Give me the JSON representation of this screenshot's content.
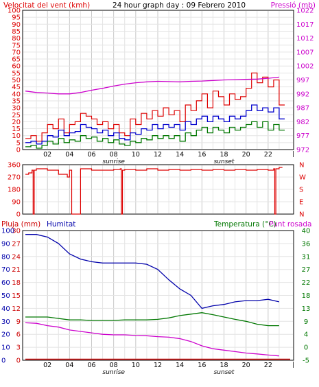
{
  "header": {
    "left_title": "Velocitat del vent (kmh)",
    "center_title": "24 hour graph day : 09 Febrero 2010",
    "right_title": "Pressió (mb)"
  },
  "colors": {
    "wind": "#dd0000",
    "wind_avg": "#0000cc",
    "wind_min": "#007700",
    "pressure": "#cc00cc",
    "direction": "#dd0000",
    "rain": "#cc0000",
    "humidity": "#0000aa",
    "temperature": "#007700",
    "dewpoint": "#cc00cc",
    "axis_left": "#dd0000",
    "axis_right": "#cc00cc",
    "grid_vertical": "#c8c8c8",
    "grid_horizontal": "#e4e4e4"
  },
  "chart_data": [
    {
      "id": "wind_pressure",
      "type": "line",
      "x_ticks": [
        "02",
        "04",
        "06",
        "08",
        "10",
        "12",
        "14",
        "16",
        "18",
        "20",
        "22"
      ],
      "x_markers": {
        "sunrise": "sunrise",
        "sunset": "sunset"
      },
      "left_axis": {
        "label": "Velocitat del vent (kmh)",
        "ticks": [
          "0",
          "5",
          "10",
          "15",
          "20",
          "25",
          "30",
          "35",
          "40",
          "45",
          "50",
          "55",
          "60",
          "65",
          "70",
          "75",
          "80",
          "85",
          "90",
          "95",
          "100"
        ],
        "ylim": [
          0,
          100
        ]
      },
      "right_axis": {
        "label": "Pressió (mb)",
        "ticks": [
          "972",
          "977",
          "982",
          "987",
          "992",
          "997",
          "1002",
          "1007",
          "1012",
          "1017",
          "1022"
        ],
        "ylim": [
          972,
          1022
        ]
      },
      "series": [
        {
          "key": "wind",
          "axis": "left",
          "x": [
            0,
            0.5,
            1,
            1.5,
            2,
            2.5,
            3,
            3.5,
            4,
            4.5,
            5,
            5.5,
            6,
            6.5,
            7,
            7.5,
            8,
            8.5,
            9,
            9.5,
            10,
            10.5,
            11,
            11.5,
            12,
            12.5,
            13,
            13.5,
            14,
            14.5,
            15,
            15.5,
            16,
            16.5,
            17,
            17.5,
            18,
            18.5,
            19,
            19.5,
            20,
            20.5,
            21,
            21.5,
            22,
            22.5,
            23
          ],
          "values": [
            8,
            10,
            6,
            12,
            18,
            15,
            22,
            12,
            18,
            20,
            26,
            24,
            22,
            18,
            20,
            15,
            18,
            12,
            10,
            22,
            18,
            26,
            22,
            28,
            24,
            30,
            25,
            28,
            20,
            32,
            28,
            35,
            40,
            30,
            42,
            38,
            32,
            40,
            36,
            38,
            44,
            55,
            48,
            52,
            45,
            50,
            32
          ]
        },
        {
          "key": "wind_avg",
          "axis": "left",
          "x": [
            0,
            0.5,
            1,
            1.5,
            2,
            2.5,
            3,
            3.5,
            4,
            4.5,
            5,
            5.5,
            6,
            6.5,
            7,
            7.5,
            8,
            8.5,
            9,
            9.5,
            10,
            10.5,
            11,
            11.5,
            12,
            12.5,
            13,
            13.5,
            14,
            14.5,
            15,
            15.5,
            16,
            16.5,
            17,
            17.5,
            18,
            18.5,
            19,
            19.5,
            20,
            20.5,
            21,
            21.5,
            22,
            22.5,
            23
          ],
          "values": [
            5,
            6,
            4,
            6,
            10,
            9,
            14,
            10,
            12,
            13,
            18,
            16,
            15,
            12,
            14,
            10,
            12,
            8,
            7,
            12,
            11,
            15,
            14,
            18,
            15,
            18,
            16,
            18,
            14,
            20,
            18,
            22,
            24,
            20,
            24,
            22,
            20,
            24,
            22,
            24,
            28,
            32,
            28,
            30,
            27,
            30,
            22
          ]
        },
        {
          "key": "wind_min",
          "axis": "left",
          "x": [
            0,
            0.5,
            1,
            1.5,
            2,
            2.5,
            3,
            3.5,
            4,
            4.5,
            5,
            5.5,
            6,
            6.5,
            7,
            7.5,
            8,
            8.5,
            9,
            9.5,
            10,
            10.5,
            11,
            11.5,
            12,
            12.5,
            13,
            13.5,
            14,
            14.5,
            15,
            15.5,
            16,
            16.5,
            17,
            17.5,
            18,
            18.5,
            19,
            19.5,
            20,
            20.5,
            21,
            21.5,
            22,
            22.5,
            23
          ],
          "values": [
            2,
            3,
            1,
            3,
            6,
            4,
            8,
            5,
            7,
            6,
            10,
            8,
            9,
            6,
            8,
            5,
            7,
            4,
            3,
            6,
            5,
            8,
            7,
            10,
            8,
            10,
            8,
            10,
            6,
            12,
            10,
            14,
            16,
            12,
            16,
            14,
            12,
            16,
            14,
            16,
            18,
            20,
            16,
            20,
            14,
            18,
            14
          ]
        },
        {
          "key": "pressure",
          "axis": "right",
          "x": [
            0,
            1,
            2,
            3,
            4,
            5,
            6,
            7,
            8,
            9,
            10,
            11,
            12,
            13,
            14,
            15,
            16,
            17,
            18,
            19,
            20,
            21,
            22,
            23
          ],
          "values": [
            993,
            992.5,
            992.3,
            992,
            992,
            992.5,
            993.3,
            994,
            994.8,
            995.5,
            996,
            996.3,
            996.5,
            996.4,
            996.3,
            996.5,
            996.6,
            996.8,
            997,
            997.1,
            997.2,
            997.3,
            997.6,
            998
          ]
        }
      ]
    },
    {
      "id": "wind_direction",
      "type": "line",
      "left_axis": {
        "ticks": [
          "360",
          "270",
          "180",
          "90",
          "0"
        ],
        "ylim": [
          0,
          360
        ]
      },
      "right_axis": {
        "ticks": [
          "N",
          "W",
          "S",
          "E",
          "N"
        ]
      },
      "series": [
        {
          "key": "direction",
          "axis": "left",
          "x": [
            0,
            0.3,
            0.6,
            0.7,
            0.8,
            1,
            2,
            3,
            3.8,
            4,
            4.2,
            5,
            6,
            7,
            8,
            8.6,
            8.7,
            8.8,
            9,
            10,
            11,
            12,
            13,
            14,
            15,
            16,
            17,
            18,
            19,
            20,
            21,
            22,
            22.5,
            22.6,
            22.7,
            22.9,
            23
          ],
          "values": [
            290,
            300,
            320,
            0,
            320,
            330,
            320,
            290,
            270,
            320,
            0,
            330,
            320,
            320,
            325,
            330,
            0,
            320,
            325,
            320,
            330,
            320,
            325,
            320,
            325,
            320,
            325,
            320,
            325,
            320,
            325,
            320,
            330,
            0,
            330,
            330,
            340
          ]
        }
      ]
    },
    {
      "id": "rain_humidity_temp",
      "type": "line",
      "x_ticks": [
        "02",
        "04",
        "06",
        "08",
        "10",
        "12",
        "14",
        "16",
        "18",
        "20",
        "22"
      ],
      "x_markers": {
        "sunrise": "sunrise",
        "sunset": "sunset"
      },
      "labels": {
        "rain": "Pluja (mm)",
        "humidity": "Humitat",
        "temperature": "Temperatura (°C)",
        "dewpoint": "Punt rosada"
      },
      "rain_axis": {
        "ticks": [
          "30",
          "27",
          "24",
          "21",
          "18",
          "15",
          "12",
          "9",
          "6",
          "3",
          "0"
        ],
        "ylim": [
          0,
          30
        ]
      },
      "humidity_axis": {
        "ticks": [
          "100",
          "90",
          "80",
          "70",
          "60",
          "50",
          "40",
          "30",
          "20",
          "10",
          "0"
        ],
        "ylim": [
          0,
          100
        ]
      },
      "temp_axis": {
        "ticks": [
          "40",
          "36",
          "31",
          "27",
          "22",
          "18",
          "13",
          "9",
          "4",
          "0",
          "-5"
        ],
        "ylim": [
          -5,
          40
        ]
      },
      "series": [
        {
          "key": "humidity",
          "axis": "humidity",
          "x": [
            0,
            1,
            2,
            3,
            4,
            5,
            6,
            7,
            8,
            9,
            10,
            11,
            12,
            13,
            14,
            15,
            16,
            17,
            18,
            19,
            20,
            21,
            22,
            23
          ],
          "values": [
            97,
            97,
            95,
            90,
            82,
            78,
            76,
            75,
            75,
            75,
            75,
            74,
            70,
            62,
            55,
            50,
            40,
            42,
            43,
            45,
            46,
            46,
            47,
            45
          ]
        },
        {
          "key": "temperature",
          "axis": "temp",
          "x": [
            0,
            1,
            2,
            3,
            4,
            5,
            6,
            7,
            8,
            9,
            10,
            11,
            12,
            13,
            14,
            15,
            16,
            17,
            18,
            19,
            20,
            21,
            22,
            23
          ],
          "values": [
            10,
            10,
            10,
            9.5,
            9,
            9,
            8.8,
            8.8,
            8.8,
            9,
            9,
            9,
            9.2,
            9.7,
            10.5,
            11,
            11.5,
            10.8,
            10,
            9.2,
            8.5,
            7.5,
            7,
            7
          ]
        },
        {
          "key": "dewpoint",
          "axis": "temp",
          "x": [
            0,
            1,
            2,
            3,
            4,
            5,
            6,
            7,
            8,
            9,
            10,
            11,
            12,
            13,
            14,
            15,
            16,
            17,
            18,
            19,
            20,
            21,
            22,
            23
          ],
          "values": [
            8,
            7.8,
            7,
            6.5,
            5.5,
            5,
            4.5,
            4,
            3.8,
            3.8,
            3.6,
            3.5,
            3.2,
            3,
            2.5,
            1.5,
            0,
            -1,
            -1.5,
            -2,
            -2.5,
            -2.8,
            -3.2,
            -3.5
          ]
        },
        {
          "key": "rain",
          "axis": "rain",
          "x": [
            0,
            23
          ],
          "values": [
            0,
            0
          ]
        }
      ]
    }
  ]
}
